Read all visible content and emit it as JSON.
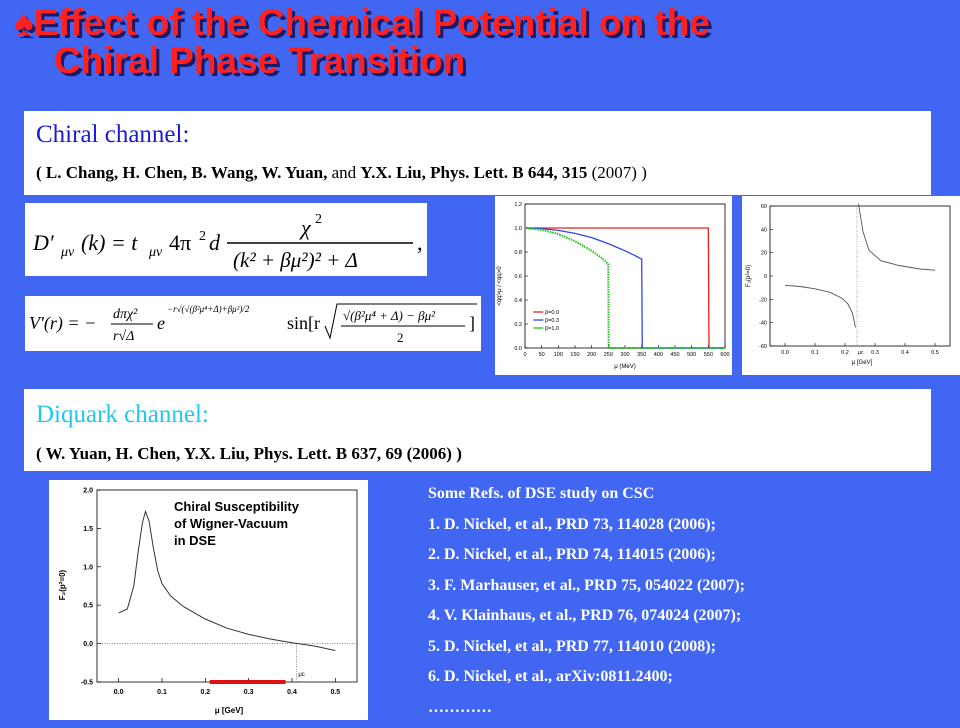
{
  "title": {
    "bullet": "♠",
    "line1": "Effect of the Chemical Potential on the",
    "line2": "Chiral Phase Transition"
  },
  "chiral": {
    "heading": "Chiral channel:",
    "cite_bold1": "( L. Chang, H. Chen, B. Wang, W. Yuan,",
    "cite_and": " and ",
    "cite_bold2": "Y.X. Liu,  Phys. Lett. B 644, 315",
    "cite_year": " (2007) )"
  },
  "diquark": {
    "heading": "Diquark channel:",
    "cite": "( W. Yuan, H. Chen, Y.X. Liu,  Phys. Lett. B 637, 69 (2006) )"
  },
  "eq1": {
    "lhs": "D′",
    "lhs_sub": "μν",
    "lhs_arg": "(k) = t",
    "t_sub": "μν",
    "coef": "4π",
    "coef_sup": "2",
    "d": "d",
    "numer": "χ",
    "numer_sup": "2",
    "denom": "(k² + βμ²)² + Δ",
    "trail": ","
  },
  "eq2": {
    "lhs": "V′(r) = −",
    "frac_num": "dπχ²",
    "frac_den": "r√Δ",
    "e": "e",
    "exp": "−r√(√(β²μ⁴+Δ)+βμ²)/2",
    "sin": "sin[r",
    "sqrt_num": "√(β²μ⁴ + Δ) − βμ²",
    "sqrt_den": "2",
    "close": "]"
  },
  "plot1": {
    "xlabel": "μ (MeV)",
    "ylabel": "<qq>μ / <qq>0",
    "xticks": [
      "0",
      "50",
      "100",
      "150",
      "200",
      "250",
      "300",
      "350",
      "400",
      "450",
      "500",
      "550",
      "600"
    ],
    "yticks": [
      "0.0",
      "0.2",
      "0.4",
      "0.6",
      "0.8",
      "1.0",
      "1.2"
    ],
    "legend": [
      "β=0.0",
      "β=0.3",
      "β=1.0"
    ],
    "colors": [
      "#e8201c",
      "#3048d8",
      "#20c020"
    ]
  },
  "plot2": {
    "xlabel": "μ [GeV]",
    "ylabel": "F₂(p²=0)",
    "xticks": [
      "0.0",
      "0.1",
      "0.2",
      "0.3",
      "0.4",
      "0.5"
    ],
    "yticks": [
      "60",
      "40",
      "20",
      "0",
      "-20",
      "-40",
      "-60"
    ],
    "mark": "μc"
  },
  "plot3": {
    "xlabel": "μ [GeV]",
    "ylabel": "F₂(p²=0)",
    "xticks": [
      "0.0",
      "0.1",
      "0.2",
      "0.3",
      "0.4",
      "0.5"
    ],
    "yticks": [
      "2.0",
      "1.5",
      "1.0",
      "0.5",
      "0.0",
      "-0.5"
    ],
    "mark": "μc",
    "caption": [
      "Chiral Susceptibility",
      "of Wigner-Vacuum",
      "in DSE"
    ]
  },
  "refs": [
    "Some Refs. of DSE study on CSC",
    "1. D. Nickel, et al., PRD 73, 114028 (2006);",
    "2. D. Nickel, et al., PRD 74, 114015 (2006);",
    "3. F. Marhauser, et al., PRD 75, 054022 (2007);",
    "4. V. Klainhaus, et al., PRD 76, 074024 (2007);",
    "5. D. Nickel, et al., PRD 77, 114010 (2008);",
    "6. D. Nickel, et al., arXiv:0811.2400;",
    "…………"
  ]
}
